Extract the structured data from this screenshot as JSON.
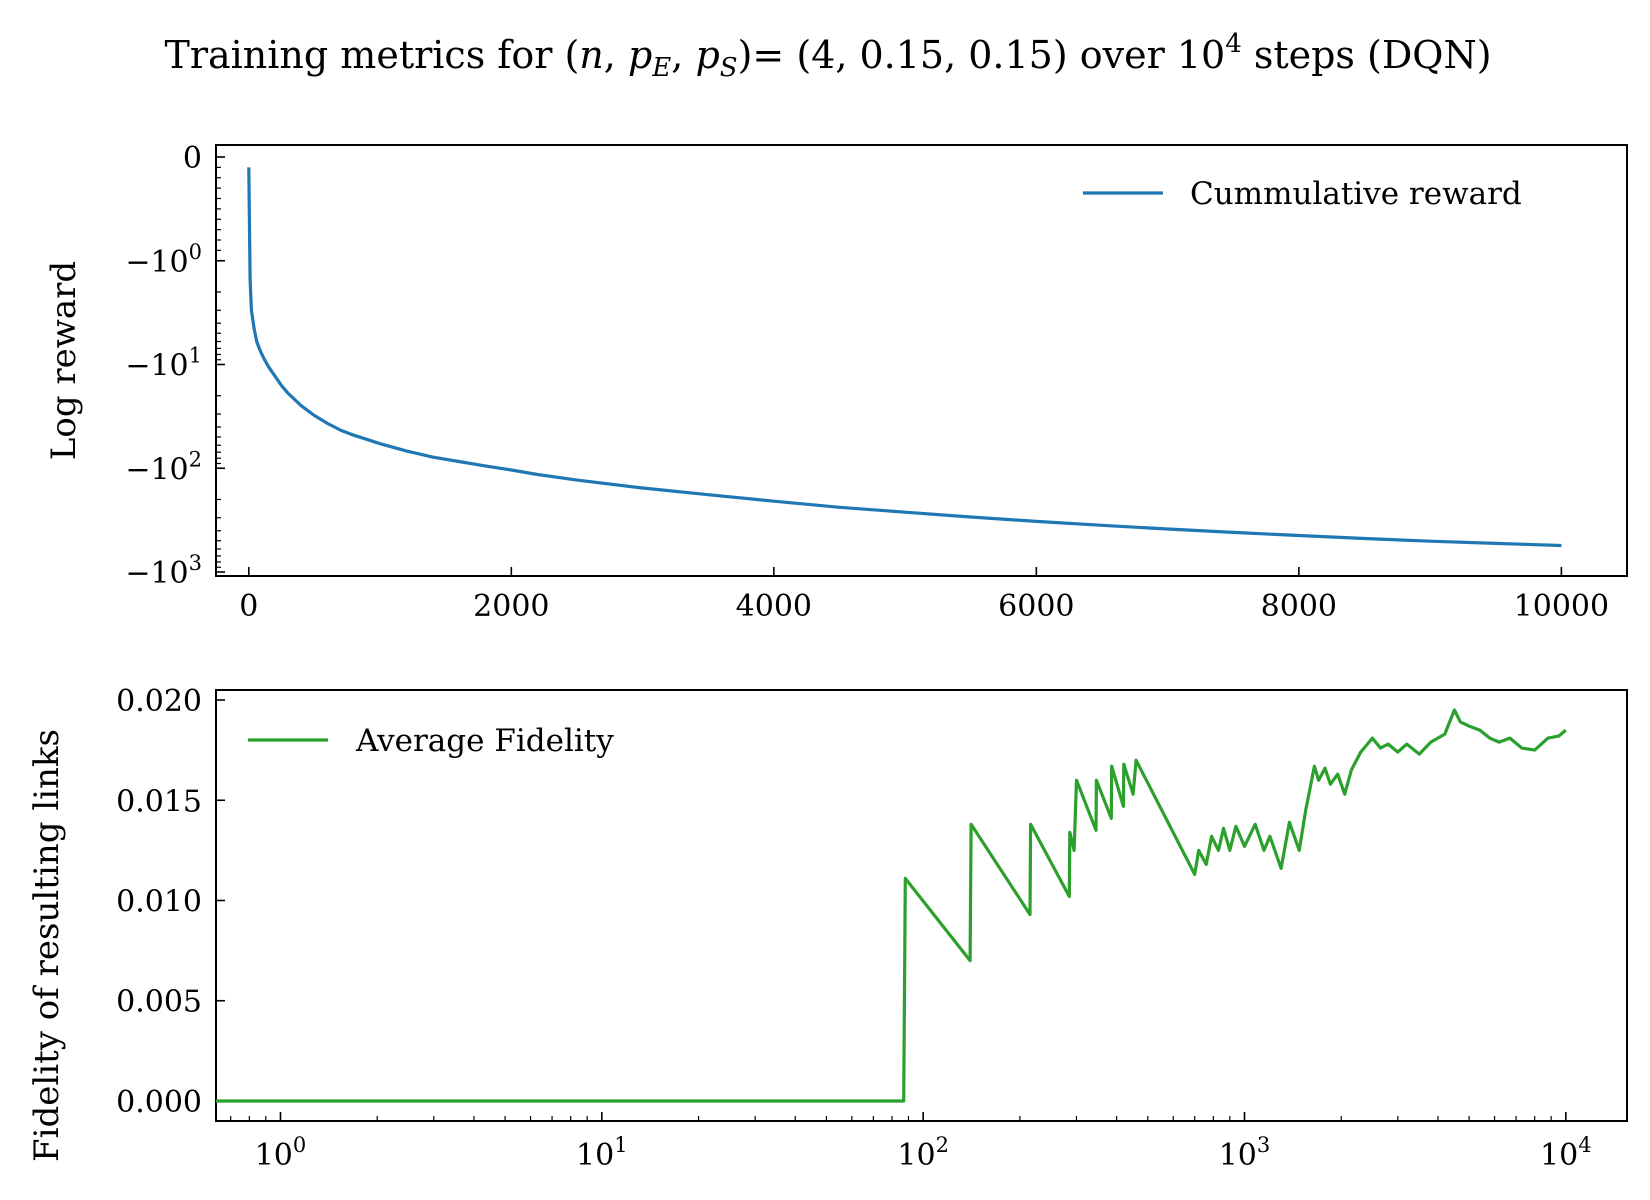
{
  "figure": {
    "title": "Training metrics for (n, p_E, p_S)= (4, 0.15, 0.15) over 10^4 steps (DQN)",
    "title_parts": {
      "prefix": "Training metrics for (",
      "n": "n",
      "p": "p",
      "sub_e": "E",
      "sub_s": "S",
      "middle": ")= (4, 0.15, 0.15) over 10",
      "sup": "4",
      "suffix": " steps (DQN)"
    }
  },
  "chart_data": [
    {
      "type": "line",
      "ylabel": "Log reward",
      "xlabel": "",
      "xlim": [
        -250,
        10500
      ],
      "yscale": "symlog",
      "ylim": [
        0,
        -1000
      ],
      "x_ticks": [
        0,
        2000,
        4000,
        6000,
        8000,
        10000
      ],
      "x_tick_labels": [
        "0",
        "2000",
        "4000",
        "6000",
        "8000",
        "10000"
      ],
      "y_ticks": [
        {
          "base": "0",
          "exp": ""
        },
        {
          "base": "−10",
          "exp": "0"
        },
        {
          "base": "−10",
          "exp": "1"
        },
        {
          "base": "−10",
          "exp": "2"
        },
        {
          "base": "−10",
          "exp": "3"
        }
      ],
      "legend_position": "top-right",
      "series": [
        {
          "name": "Cummulative reward",
          "color": "#1f77b4",
          "x": [
            0,
            10,
            20,
            40,
            60,
            80,
            100,
            120,
            150,
            200,
            250,
            300,
            400,
            500,
            600,
            700,
            800,
            1000,
            1200,
            1400,
            1600,
            1800,
            2000,
            2200,
            2500,
            3000,
            3500,
            4000,
            4500,
            5000,
            5500,
            6000,
            6500,
            7000,
            7500,
            8000,
            8500,
            9000,
            9500,
            10000
          ],
          "y": [
            -0.1,
            -1.5,
            -3,
            -4.5,
            -6,
            -7,
            -8,
            -9,
            -10.5,
            -13,
            -16,
            -19,
            -25,
            -31,
            -37,
            -43,
            -48,
            -58,
            -68,
            -78,
            -86,
            -95,
            -104,
            -115,
            -130,
            -155,
            -180,
            -208,
            -238,
            -265,
            -295,
            -325,
            -355,
            -385,
            -415,
            -445,
            -475,
            -505,
            -530,
            -555
          ]
        }
      ]
    },
    {
      "type": "line",
      "ylabel": "Fidelity of resulting links",
      "xlabel": "",
      "xscale": "log",
      "xlim": [
        0.63,
        15500
      ],
      "ylim": [
        -0.001,
        0.0205
      ],
      "x_ticks": [
        {
          "base": "10",
          "exp": "0"
        },
        {
          "base": "10",
          "exp": "1"
        },
        {
          "base": "10",
          "exp": "2"
        },
        {
          "base": "10",
          "exp": "3"
        },
        {
          "base": "10",
          "exp": "4"
        }
      ],
      "y_ticks": [
        0,
        0.005,
        0.01,
        0.015,
        0.02
      ],
      "y_tick_labels": [
        "0.000",
        "0.005",
        "0.010",
        "0.015",
        "0.020"
      ],
      "legend_position": "top-left",
      "series": [
        {
          "name": "Average Fidelity",
          "color": "#2ca02c",
          "x": [
            0.63,
            87,
            88,
            140,
            141,
            215,
            216,
            285,
            286,
            295,
            300,
            345,
            346,
            385,
            386,
            420,
            421,
            450,
            460,
            700,
            720,
            760,
            790,
            830,
            860,
            900,
            940,
            1000,
            1080,
            1150,
            1200,
            1300,
            1380,
            1480,
            1550,
            1650,
            1700,
            1780,
            1850,
            1950,
            2050,
            2150,
            2300,
            2500,
            2650,
            2800,
            3000,
            3200,
            3500,
            3800,
            4200,
            4500,
            4700,
            5000,
            5400,
            5800,
            6200,
            6700,
            7300,
            8000,
            8800,
            9500,
            10000
          ],
          "y": [
            0,
            0,
            0.0111,
            0.007,
            0.0138,
            0.0093,
            0.0138,
            0.0102,
            0.0134,
            0.0125,
            0.016,
            0.0135,
            0.016,
            0.0141,
            0.0167,
            0.0147,
            0.0168,
            0.0153,
            0.017,
            0.0113,
            0.0125,
            0.0118,
            0.0132,
            0.0125,
            0.0136,
            0.0125,
            0.0137,
            0.0127,
            0.0138,
            0.0125,
            0.0132,
            0.0116,
            0.0139,
            0.0125,
            0.0145,
            0.0167,
            0.016,
            0.0166,
            0.0158,
            0.0163,
            0.0153,
            0.0165,
            0.0174,
            0.0181,
            0.0176,
            0.0178,
            0.0174,
            0.0178,
            0.0173,
            0.0179,
            0.0183,
            0.0195,
            0.0189,
            0.0187,
            0.0185,
            0.0181,
            0.0179,
            0.0181,
            0.0176,
            0.0175,
            0.0181,
            0.0182,
            0.0185
          ]
        }
      ]
    }
  ]
}
